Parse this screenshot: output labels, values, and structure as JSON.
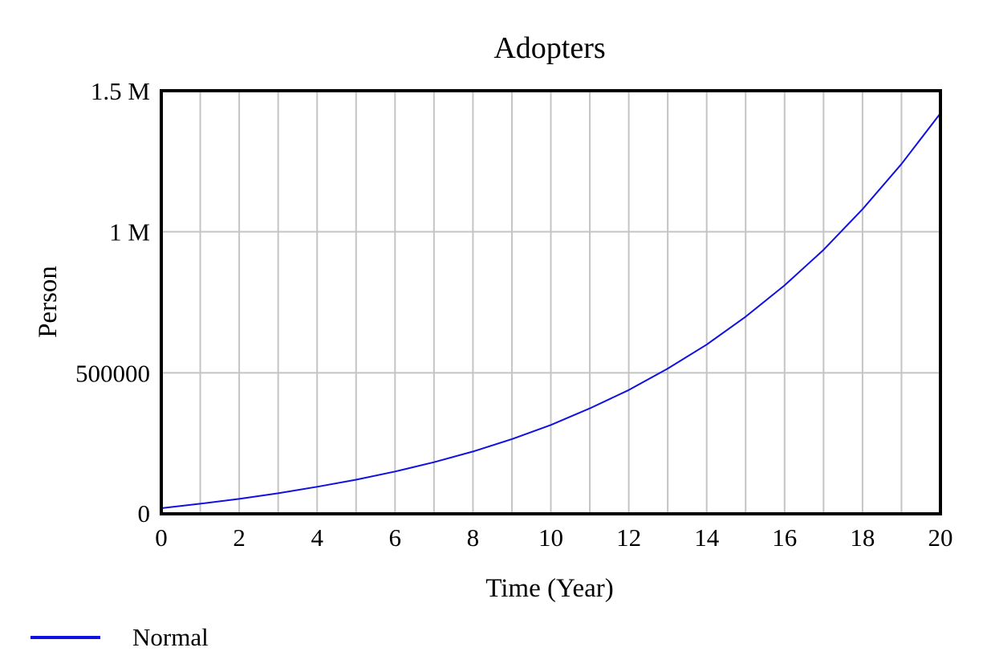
{
  "chart_data": {
    "type": "line",
    "title": "Adopters",
    "xlabel": "Time (Year)",
    "ylabel": "Person",
    "xlim": [
      0,
      20
    ],
    "ylim": [
      0,
      1500000
    ],
    "x_ticks": [
      0,
      2,
      4,
      6,
      8,
      10,
      12,
      14,
      16,
      18,
      20
    ],
    "x_tick_labels": [
      "0",
      "2",
      "4",
      "6",
      "8",
      "10",
      "12",
      "14",
      "16",
      "18",
      "20"
    ],
    "x_gridlines": [
      0,
      1,
      2,
      3,
      4,
      5,
      6,
      7,
      8,
      9,
      10,
      11,
      12,
      13,
      14,
      15,
      16,
      17,
      18,
      19,
      20
    ],
    "y_ticks": [
      0,
      500000,
      1000000,
      1500000
    ],
    "y_tick_labels": [
      "0",
      "500000",
      "1 M",
      "1.5 M"
    ],
    "grid": true,
    "legend_position": "bottom-left",
    "series": [
      {
        "name": "Normal",
        "color": "#1010e0",
        "x": [
          0,
          1,
          2,
          3,
          4,
          5,
          6,
          7,
          8,
          9,
          10,
          11,
          12,
          13,
          14,
          15,
          16,
          17,
          18,
          19,
          20
        ],
        "values": [
          20000,
          36000,
          53000,
          73000,
          96000,
          121000,
          150000,
          183000,
          221000,
          265000,
          315000,
          374000,
          439000,
          515000,
          600000,
          699000,
          810000,
          936000,
          1080000,
          1240000,
          1420000
        ]
      }
    ]
  }
}
